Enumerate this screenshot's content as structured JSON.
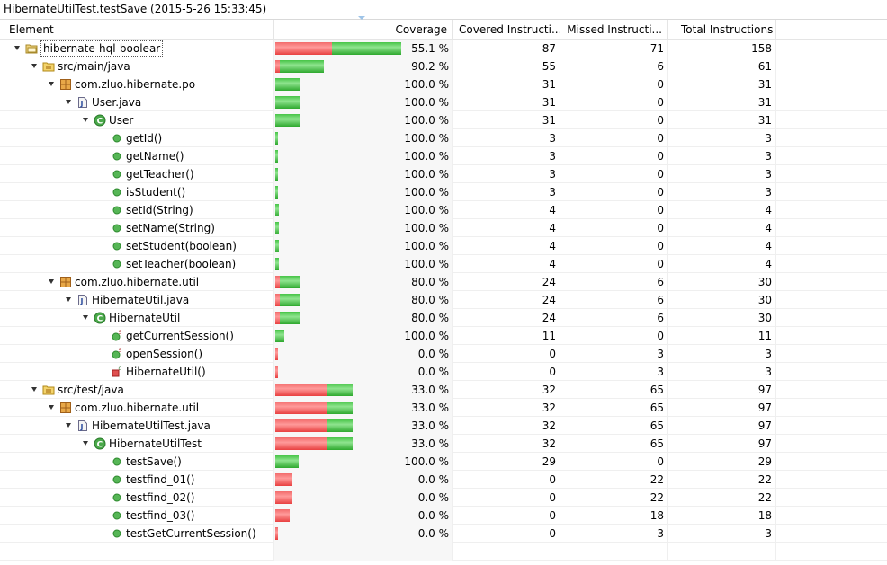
{
  "title": "HibernateUtilTest.testSave (2015-5-26 15:33:45)",
  "columns": {
    "element": "Element",
    "coverage": "Coverage",
    "covered": "Covered Instructi...",
    "missed": "Missed Instructi...",
    "total": "Total Instructions"
  },
  "colors": {
    "covered": "#3cb93c",
    "missed": "#f05a5a"
  },
  "rows": [
    {
      "name": "hibernate-hql-boolear",
      "icon": "project-icon",
      "level": 0,
      "expanded": true,
      "selected": true,
      "coverage": "55.1 %",
      "covered": 87,
      "missed": 71,
      "total": 158
    },
    {
      "name": "src/main/java",
      "icon": "source-folder-icon",
      "level": 1,
      "expanded": true,
      "coverage": "90.2 %",
      "covered": 55,
      "missed": 6,
      "total": 61
    },
    {
      "name": "com.zluo.hibernate.po",
      "icon": "package-icon",
      "level": 2,
      "expanded": true,
      "coverage": "100.0 %",
      "covered": 31,
      "missed": 0,
      "total": 31
    },
    {
      "name": "User.java",
      "icon": "java-file-icon",
      "level": 3,
      "expanded": true,
      "coverage": "100.0 %",
      "covered": 31,
      "missed": 0,
      "total": 31
    },
    {
      "name": "User",
      "icon": "class-icon",
      "level": 4,
      "expanded": true,
      "coverage": "100.0 %",
      "covered": 31,
      "missed": 0,
      "total": 31
    },
    {
      "name": "getId()",
      "icon": "method-icon",
      "level": 5,
      "coverage": "100.0 %",
      "covered": 3,
      "missed": 0,
      "total": 3
    },
    {
      "name": "getName()",
      "icon": "method-icon",
      "level": 5,
      "coverage": "100.0 %",
      "covered": 3,
      "missed": 0,
      "total": 3
    },
    {
      "name": "getTeacher()",
      "icon": "method-icon",
      "level": 5,
      "coverage": "100.0 %",
      "covered": 3,
      "missed": 0,
      "total": 3
    },
    {
      "name": "isStudent()",
      "icon": "method-icon",
      "level": 5,
      "coverage": "100.0 %",
      "covered": 3,
      "missed": 0,
      "total": 3
    },
    {
      "name": "setId(String)",
      "icon": "method-icon",
      "level": 5,
      "coverage": "100.0 %",
      "covered": 4,
      "missed": 0,
      "total": 4
    },
    {
      "name": "setName(String)",
      "icon": "method-icon",
      "level": 5,
      "coverage": "100.0 %",
      "covered": 4,
      "missed": 0,
      "total": 4
    },
    {
      "name": "setStudent(boolean)",
      "icon": "method-icon",
      "level": 5,
      "coverage": "100.0 %",
      "covered": 4,
      "missed": 0,
      "total": 4
    },
    {
      "name": "setTeacher(boolean)",
      "icon": "method-icon",
      "level": 5,
      "coverage": "100.0 %",
      "covered": 4,
      "missed": 0,
      "total": 4
    },
    {
      "name": "com.zluo.hibernate.util",
      "icon": "package-icon",
      "level": 2,
      "expanded": true,
      "coverage": "80.0 %",
      "covered": 24,
      "missed": 6,
      "total": 30
    },
    {
      "name": "HibernateUtil.java",
      "icon": "java-file-icon",
      "level": 3,
      "expanded": true,
      "coverage": "80.0 %",
      "covered": 24,
      "missed": 6,
      "total": 30
    },
    {
      "name": "HibernateUtil",
      "icon": "class-icon",
      "level": 4,
      "expanded": true,
      "coverage": "80.0 %",
      "covered": 24,
      "missed": 6,
      "total": 30
    },
    {
      "name": "getCurrentSession()",
      "icon": "static-method-icon",
      "level": 5,
      "coverage": "100.0 %",
      "covered": 11,
      "missed": 0,
      "total": 11
    },
    {
      "name": "openSession()",
      "icon": "static-method-icon",
      "level": 5,
      "coverage": "0.0 %",
      "covered": 0,
      "missed": 3,
      "total": 3
    },
    {
      "name": "HibernateUtil()",
      "icon": "constructor-icon",
      "level": 5,
      "coverage": "0.0 %",
      "covered": 0,
      "missed": 3,
      "total": 3
    },
    {
      "name": "src/test/java",
      "icon": "source-folder-icon",
      "level": 1,
      "expanded": true,
      "coverage": "33.0 %",
      "covered": 32,
      "missed": 65,
      "total": 97
    },
    {
      "name": "com.zluo.hibernate.util",
      "icon": "package-icon",
      "level": 2,
      "expanded": true,
      "coverage": "33.0 %",
      "covered": 32,
      "missed": 65,
      "total": 97
    },
    {
      "name": "HibernateUtilTest.java",
      "icon": "java-file-icon",
      "level": 3,
      "expanded": true,
      "coverage": "33.0 %",
      "covered": 32,
      "missed": 65,
      "total": 97
    },
    {
      "name": "HibernateUtilTest",
      "icon": "class-icon",
      "level": 4,
      "expanded": true,
      "coverage": "33.0 %",
      "covered": 32,
      "missed": 65,
      "total": 97
    },
    {
      "name": "testSave()",
      "icon": "method-icon",
      "level": 5,
      "coverage": "100.0 %",
      "covered": 29,
      "missed": 0,
      "total": 29
    },
    {
      "name": "testfind_01()",
      "icon": "method-icon",
      "level": 5,
      "coverage": "0.0 %",
      "covered": 0,
      "missed": 22,
      "total": 22
    },
    {
      "name": "testfind_02()",
      "icon": "method-icon",
      "level": 5,
      "coverage": "0.0 %",
      "covered": 0,
      "missed": 22,
      "total": 22
    },
    {
      "name": "testfind_03()",
      "icon": "method-icon",
      "level": 5,
      "coverage": "0.0 %",
      "covered": 0,
      "missed": 18,
      "total": 18
    },
    {
      "name": "testGetCurrentSession()",
      "icon": "method-icon",
      "level": 5,
      "coverage": "0.0 %",
      "covered": 0,
      "missed": 3,
      "total": 3
    }
  ]
}
